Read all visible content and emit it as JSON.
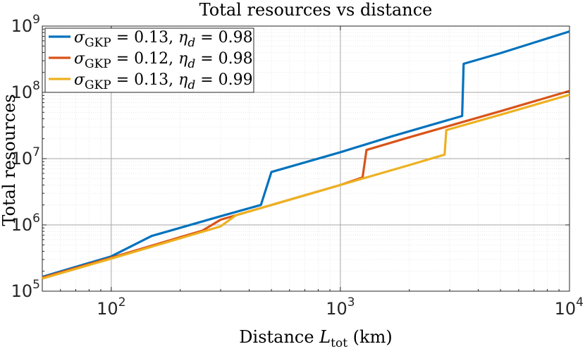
{
  "chart_data": {
    "type": "line",
    "title": "Total resources vs distance",
    "xlabel": "Distance L_tot (km)",
    "ylabel": "Total resources",
    "xscale": "log",
    "yscale": "log",
    "xlim": [
      50,
      10000
    ],
    "ylim": [
      100000,
      1000000000
    ],
    "grid": true,
    "minor_grid": true,
    "legend_position": "top-left",
    "x_ticks": [
      {
        "value": 100,
        "base": "10",
        "exp": "2"
      },
      {
        "value": 1000,
        "base": "10",
        "exp": "3"
      },
      {
        "value": 10000,
        "base": "10",
        "exp": "4"
      }
    ],
    "y_ticks": [
      {
        "value": 100000,
        "base": "10",
        "exp": "5"
      },
      {
        "value": 1000000,
        "base": "10",
        "exp": "6"
      },
      {
        "value": 10000000,
        "base": "10",
        "exp": "7"
      },
      {
        "value": 100000000,
        "base": "10",
        "exp": "8"
      },
      {
        "value": 1000000000,
        "base": "10",
        "exp": "9"
      }
    ],
    "series": [
      {
        "name": "σGKP = 0.13, ηd = 0.98",
        "legend": {
          "sigma_val": "0.13",
          "eta_val": "0.98"
        },
        "color": "#0072BD",
        "points": [
          [
            50,
            165000
          ],
          [
            100,
            335000
          ],
          [
            150,
            680000
          ],
          [
            300,
            1350000
          ],
          [
            450,
            2000000
          ],
          [
            500,
            6300000
          ],
          [
            1000,
            12500000
          ],
          [
            1700,
            22000000
          ],
          [
            3400,
            44000000
          ],
          [
            3450,
            270000000
          ],
          [
            5000,
            390000000
          ],
          [
            10000,
            830000000
          ]
        ]
      },
      {
        "name": "σGKP = 0.12, ηd = 0.98",
        "legend": {
          "sigma_val": "0.12",
          "eta_val": "0.98"
        },
        "color": "#D95319",
        "points": [
          [
            50,
            160000
          ],
          [
            100,
            320000
          ],
          [
            250,
            820000
          ],
          [
            300,
            1200000
          ],
          [
            1000,
            4000000
          ],
          [
            1250,
            5200000
          ],
          [
            1300,
            13500000
          ],
          [
            2000,
            21000000
          ],
          [
            5000,
            52000000
          ],
          [
            10000,
            105000000
          ]
        ]
      },
      {
        "name": "σGKP = 0.13, ηd = 0.99",
        "legend": {
          "sigma_val": "0.13",
          "eta_val": "0.99"
        },
        "color": "#EDB120",
        "points": [
          [
            50,
            155000
          ],
          [
            100,
            310000
          ],
          [
            300,
            950000
          ],
          [
            350,
            1400000
          ],
          [
            1000,
            4000000
          ],
          [
            2000,
            8000000
          ],
          [
            2850,
            11500000
          ],
          [
            2900,
            27000000
          ],
          [
            5000,
            46000000
          ],
          [
            10000,
            92000000
          ]
        ]
      }
    ]
  }
}
